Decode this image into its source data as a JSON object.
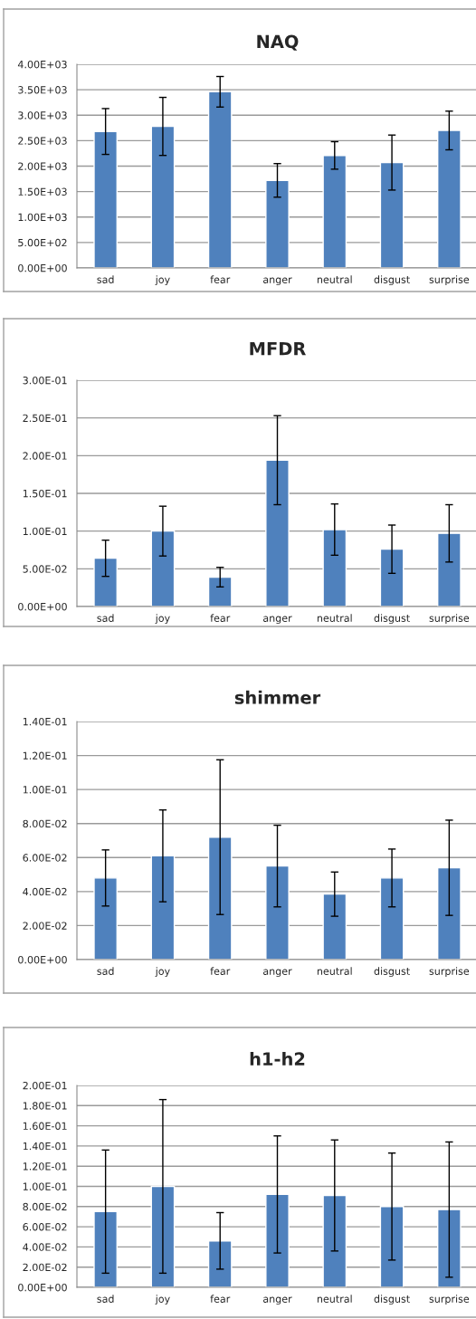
{
  "chart_data": [
    {
      "type": "bar",
      "title": "NAQ",
      "categories": [
        "sad",
        "joy",
        "fear",
        "anger",
        "neutral",
        "disgust",
        "surprise"
      ],
      "values": [
        2680,
        2780,
        3460,
        1720,
        2210,
        2070,
        2700
      ],
      "errors": [
        450,
        570,
        300,
        330,
        270,
        540,
        380
      ],
      "color": "#4f81bd",
      "ylim": [
        0,
        4000
      ],
      "yticks": [
        {
          "value": 0,
          "label": "0.00E+00"
        },
        {
          "value": 500,
          "label": "5.00E+02"
        },
        {
          "value": 1000,
          "label": "1.00E+03"
        },
        {
          "value": 1500,
          "label": "1.50E+03"
        },
        {
          "value": 2000,
          "label": "2.00E+03"
        },
        {
          "value": 2500,
          "label": "2.50E+03"
        },
        {
          "value": 3000,
          "label": "3.00E+03"
        },
        {
          "value": 3500,
          "label": "3.50E+03"
        },
        {
          "value": 4000,
          "label": "4.00E+03"
        }
      ],
      "grid": "y"
    },
    {
      "type": "bar",
      "title": "MFDR",
      "categories": [
        "sad",
        "joy",
        "fear",
        "anger",
        "neutral",
        "disgust",
        "surprise"
      ],
      "values": [
        0.064,
        0.1,
        0.039,
        0.194,
        0.102,
        0.076,
        0.097
      ],
      "errors": [
        0.024,
        0.033,
        0.013,
        0.059,
        0.034,
        0.032,
        0.038
      ],
      "color": "#4f81bd",
      "ylim": [
        0,
        0.3
      ],
      "yticks": [
        {
          "value": 0,
          "label": "0.00E+00"
        },
        {
          "value": 0.05,
          "label": "5.00E-02"
        },
        {
          "value": 0.1,
          "label": "1.00E-01"
        },
        {
          "value": 0.15,
          "label": "1.50E-01"
        },
        {
          "value": 0.2,
          "label": "2.00E-01"
        },
        {
          "value": 0.25,
          "label": "2.50E-01"
        },
        {
          "value": 0.3,
          "label": "3.00E-01"
        }
      ],
      "grid": "y"
    },
    {
      "type": "bar",
      "title": "shimmer",
      "categories": [
        "sad",
        "joy",
        "fear",
        "anger",
        "neutral",
        "disgust",
        "surprise"
      ],
      "values": [
        0.048,
        0.061,
        0.072,
        0.055,
        0.0385,
        0.048,
        0.054
      ],
      "errors": [
        0.0165,
        0.027,
        0.0455,
        0.024,
        0.013,
        0.017,
        0.028
      ],
      "color": "#4f81bd",
      "ylim": [
        0,
        0.14
      ],
      "yticks": [
        {
          "value": 0,
          "label": "0.00E+00"
        },
        {
          "value": 0.02,
          "label": "2.00E-02"
        },
        {
          "value": 0.04,
          "label": "4.00E-02"
        },
        {
          "value": 0.06,
          "label": "6.00E-02"
        },
        {
          "value": 0.08,
          "label": "8.00E-02"
        },
        {
          "value": 0.1,
          "label": "1.00E-01"
        },
        {
          "value": 0.12,
          "label": "1.20E-01"
        },
        {
          "value": 0.14,
          "label": "1.40E-01"
        }
      ],
      "grid": "y"
    },
    {
      "type": "bar",
      "title": "h1-h2",
      "categories": [
        "sad",
        "joy",
        "fear",
        "anger",
        "neutral",
        "disgust",
        "surprise"
      ],
      "values": [
        0.075,
        0.1,
        0.046,
        0.092,
        0.091,
        0.08,
        0.077
      ],
      "errors": [
        0.061,
        0.086,
        0.028,
        0.058,
        0.055,
        0.053,
        0.067
      ],
      "color": "#4f81bd",
      "ylim": [
        0,
        0.2
      ],
      "yticks": [
        {
          "value": 0,
          "label": "0.00E+00"
        },
        {
          "value": 0.02,
          "label": "2.00E-02"
        },
        {
          "value": 0.04,
          "label": "4.00E-02"
        },
        {
          "value": 0.06,
          "label": "6.00E-02"
        },
        {
          "value": 0.08,
          "label": "8.00E-02"
        },
        {
          "value": 0.1,
          "label": "1.00E-01"
        },
        {
          "value": 0.12,
          "label": "1.20E-01"
        },
        {
          "value": 0.14,
          "label": "1.40E-01"
        },
        {
          "value": 0.16,
          "label": "1.60E-01"
        },
        {
          "value": 0.18,
          "label": "1.80E-01"
        },
        {
          "value": 0.2,
          "label": "2.00E-01"
        }
      ],
      "grid": "y"
    }
  ]
}
